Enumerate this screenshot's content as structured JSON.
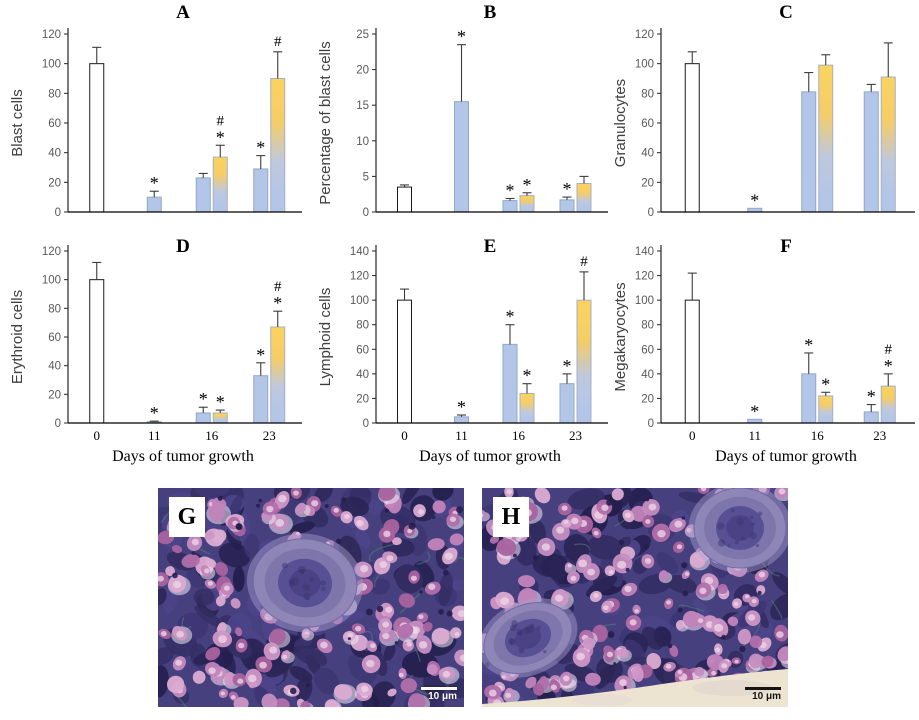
{
  "figure": {
    "x_axis_title": "Days of tumor growth",
    "x_categories": [
      "0",
      "11",
      "16",
      "23"
    ]
  },
  "colors": {
    "bar_white": "#FFFFFF",
    "bar_blue": "#B4C6E7",
    "bar_blue_border": "#8FA8CC",
    "gradient_top": "#FBD35F",
    "gradient_bottom": "#B4C6E7",
    "axis": "#262626",
    "tick_label": "#595959",
    "axis_title": "#3F3F3F",
    "error_bar": "#3C3C3C"
  },
  "chart_data": [
    {
      "panel": "A",
      "type": "bar",
      "ylabel": "Blast cells",
      "ylim": [
        0,
        120
      ],
      "ytick_step": 20,
      "xlabel": "",
      "show_x_axis_labels": false,
      "categories": [
        "0",
        "11",
        "16",
        "23"
      ],
      "bars": [
        {
          "category": "0",
          "fill": "white",
          "value": 100,
          "error": 11,
          "annotations": []
        },
        {
          "category": "11",
          "fill": "blue",
          "value": 10,
          "error": 4,
          "annotations": [
            "*"
          ]
        },
        {
          "category": "16",
          "fill": "blue",
          "value": 23,
          "error": 3,
          "annotations": []
        },
        {
          "category": "16",
          "fill": "gradient",
          "value": 37,
          "error": 8,
          "annotations": [
            "*",
            "#"
          ]
        },
        {
          "category": "23",
          "fill": "blue",
          "value": 29,
          "error": 9,
          "annotations": [
            "*"
          ]
        },
        {
          "category": "23",
          "fill": "gradient",
          "value": 90,
          "error": 18,
          "annotations": [
            "#"
          ]
        }
      ]
    },
    {
      "panel": "B",
      "type": "bar",
      "ylabel": "Percentage of blast cells",
      "ylim": [
        0,
        25
      ],
      "ytick_step": 5,
      "xlabel": "",
      "show_x_axis_labels": false,
      "categories": [
        "0",
        "11",
        "16",
        "23"
      ],
      "bars": [
        {
          "category": "0",
          "fill": "white",
          "value": 3.5,
          "error": 0.3,
          "annotations": []
        },
        {
          "category": "11",
          "fill": "blue",
          "value": 15.5,
          "error": 8,
          "annotations": [
            "*"
          ]
        },
        {
          "category": "16",
          "fill": "blue",
          "value": 1.6,
          "error": 0.3,
          "annotations": [
            "*"
          ]
        },
        {
          "category": "16",
          "fill": "gradient",
          "value": 2.3,
          "error": 0.4,
          "annotations": [
            "*"
          ]
        },
        {
          "category": "23",
          "fill": "blue",
          "value": 1.7,
          "error": 0.4,
          "annotations": [
            "*"
          ]
        },
        {
          "category": "23",
          "fill": "gradient",
          "value": 4,
          "error": 1,
          "annotations": []
        }
      ]
    },
    {
      "panel": "C",
      "type": "bar",
      "ylabel": "Granulocytes",
      "ylim": [
        0,
        120
      ],
      "ytick_step": 20,
      "xlabel": "",
      "show_x_axis_labels": false,
      "categories": [
        "0",
        "11",
        "16",
        "23"
      ],
      "bars": [
        {
          "category": "0",
          "fill": "white",
          "value": 100,
          "error": 8,
          "annotations": []
        },
        {
          "category": "11",
          "fill": "blue",
          "value": 2.5,
          "error": 0,
          "annotations": [
            "*"
          ]
        },
        {
          "category": "16",
          "fill": "blue",
          "value": 81,
          "error": 13,
          "annotations": []
        },
        {
          "category": "16",
          "fill": "gradient",
          "value": 99,
          "error": 7,
          "annotations": []
        },
        {
          "category": "23",
          "fill": "blue",
          "value": 81,
          "error": 5,
          "annotations": []
        },
        {
          "category": "23",
          "fill": "gradient",
          "value": 91,
          "error": 23,
          "annotations": []
        }
      ]
    },
    {
      "panel": "D",
      "type": "bar",
      "ylabel": "Erythroid cells",
      "ylim": [
        0,
        120
      ],
      "ytick_step": 20,
      "xlabel": "Days of tumor growth",
      "show_x_axis_labels": true,
      "categories": [
        "0",
        "11",
        "16",
        "23"
      ],
      "bars": [
        {
          "category": "0",
          "fill": "white",
          "value": 100,
          "error": 12,
          "annotations": []
        },
        {
          "category": "11",
          "fill": "blue",
          "value": 0.8,
          "error": 0.5,
          "annotations": [
            "*"
          ]
        },
        {
          "category": "16",
          "fill": "blue",
          "value": 7,
          "error": 4,
          "annotations": [
            "*"
          ]
        },
        {
          "category": "16",
          "fill": "gradient",
          "value": 7,
          "error": 2,
          "annotations": [
            "*"
          ]
        },
        {
          "category": "23",
          "fill": "blue",
          "value": 33,
          "error": 9,
          "annotations": [
            "*"
          ]
        },
        {
          "category": "23",
          "fill": "gradient",
          "value": 67,
          "error": 11,
          "annotations": [
            "*",
            "#"
          ]
        }
      ]
    },
    {
      "panel": "E",
      "type": "bar",
      "ylabel": "Lymphoid cells",
      "ylim": [
        0,
        140
      ],
      "ytick_step": 20,
      "xlabel": "Days of tumor growth",
      "show_x_axis_labels": true,
      "categories": [
        "0",
        "11",
        "16",
        "23"
      ],
      "bars": [
        {
          "category": "0",
          "fill": "white",
          "value": 100,
          "error": 9,
          "annotations": []
        },
        {
          "category": "11",
          "fill": "blue",
          "value": 5,
          "error": 1.5,
          "annotations": [
            "*"
          ]
        },
        {
          "category": "16",
          "fill": "blue",
          "value": 64,
          "error": 16,
          "annotations": [
            "*"
          ]
        },
        {
          "category": "16",
          "fill": "gradient",
          "value": 24,
          "error": 8,
          "annotations": [
            "*"
          ]
        },
        {
          "category": "23",
          "fill": "blue",
          "value": 32,
          "error": 8,
          "annotations": [
            "*"
          ]
        },
        {
          "category": "23",
          "fill": "gradient",
          "value": 100,
          "error": 23,
          "annotations": [
            "#"
          ]
        }
      ]
    },
    {
      "panel": "F",
      "type": "bar",
      "ylabel": "Megakaryocytes",
      "ylim": [
        0,
        140
      ],
      "ytick_step": 20,
      "xlabel": "Days of tumor growth",
      "show_x_axis_labels": true,
      "categories": [
        "0",
        "11",
        "16",
        "23"
      ],
      "bars": [
        {
          "category": "0",
          "fill": "white",
          "value": 100,
          "error": 22,
          "annotations": []
        },
        {
          "category": "11",
          "fill": "blue",
          "value": 3,
          "error": 0,
          "annotations": [
            "*"
          ]
        },
        {
          "category": "16",
          "fill": "blue",
          "value": 40,
          "error": 17,
          "annotations": [
            "*"
          ]
        },
        {
          "category": "16",
          "fill": "gradient",
          "value": 22,
          "error": 3,
          "annotations": [
            "*"
          ]
        },
        {
          "category": "23",
          "fill": "blue",
          "value": 9,
          "error": 6,
          "annotations": [
            "*"
          ]
        },
        {
          "category": "23",
          "fill": "gradient",
          "value": 30,
          "error": 10,
          "annotations": [
            "*",
            "#"
          ]
        }
      ]
    }
  ],
  "micrographs": [
    {
      "label": "G",
      "scale_bar_text": "10 μm"
    },
    {
      "label": "H",
      "scale_bar_text": "10 μm"
    }
  ]
}
